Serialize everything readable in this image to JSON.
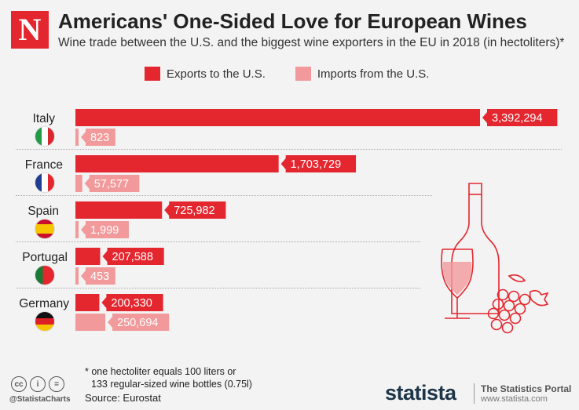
{
  "header": {
    "logo_letter": "N",
    "title": "Americans' One-Sided Love for European Wines",
    "subtitle": "Wine trade between the U.S. and the biggest wine exporters in the EU in 2018 (in hectoliters)*"
  },
  "colors": {
    "exports": "#e4272f",
    "imports": "#f29a9b"
  },
  "chart_data": {
    "type": "bar",
    "orientation": "horizontal",
    "categories": [
      "Italy",
      "France",
      "Spain",
      "Portugal",
      "Germany"
    ],
    "series": [
      {
        "name": "Exports to the U.S.",
        "values": [
          3392294,
          1703729,
          725982,
          207588,
          200330
        ],
        "labels": [
          "3,392,294",
          "1,703,729",
          "725,982",
          "207,588",
          "200,330"
        ]
      },
      {
        "name": "Imports from the U.S.",
        "values": [
          823,
          57577,
          1999,
          453,
          250694
        ],
        "labels": [
          "823",
          "57,577",
          "1,999",
          "453",
          "250,694"
        ]
      }
    ],
    "xlim": [
      0,
      3392294
    ],
    "legend": "top"
  },
  "footer": {
    "footnote_line1": "* one hectoliter equals 100 liters or",
    "footnote_line2": "133 regular-sized wine bottles (0.75l)",
    "source": "Source: Eurostat",
    "handle": "@StatistaCharts",
    "brand": "statista",
    "portal_name": "The Statistics Portal",
    "portal_url": "www.statista.com"
  }
}
